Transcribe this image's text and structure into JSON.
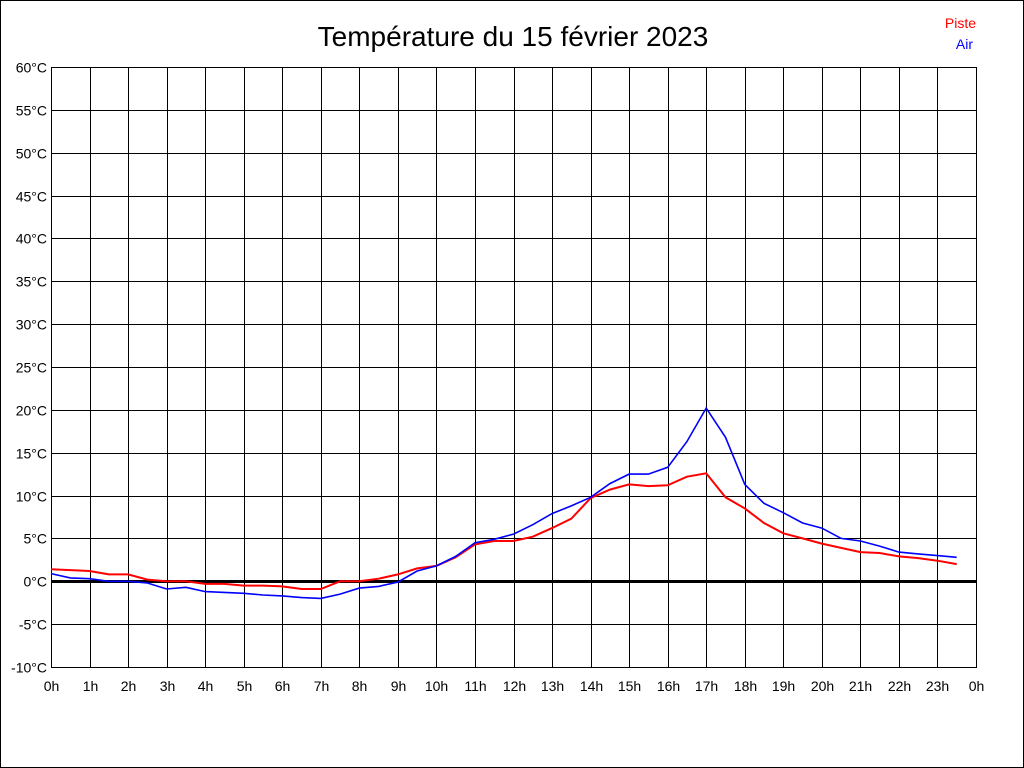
{
  "chart_data": {
    "type": "line",
    "title": "Température du 15 février 2023",
    "xlabel": "",
    "ylabel": "",
    "x_tick_labels": [
      "0h",
      "1h",
      "2h",
      "3h",
      "4h",
      "5h",
      "6h",
      "7h",
      "8h",
      "9h",
      "10h",
      "11h",
      "12h",
      "13h",
      "14h",
      "15h",
      "16h",
      "17h",
      "18h",
      "19h",
      "20h",
      "21h",
      "22h",
      "23h",
      "0h"
    ],
    "y_tick_labels": [
      "60°C",
      "55°C",
      "50°C",
      "45°C",
      "40°C",
      "35°C",
      "30°C",
      "25°C",
      "20°C",
      "15°C",
      "10°C",
      "5°C",
      "0°C",
      "-5°C",
      "-10°C"
    ],
    "xlim": [
      0,
      24
    ],
    "ylim": [
      -10,
      60
    ],
    "grid": true,
    "legend_placement": "top-right",
    "x": [
      0,
      0.5,
      1,
      1.5,
      2,
      2.5,
      3,
      3.5,
      4,
      4.5,
      5,
      5.5,
      6,
      6.5,
      7,
      7.5,
      8,
      8.5,
      9,
      9.5,
      10,
      10.5,
      11,
      11.5,
      12,
      12.5,
      13,
      13.5,
      14,
      14.5,
      15,
      15.5,
      16,
      16.5,
      17,
      17.5,
      18,
      18.5,
      19,
      19.5,
      20,
      20.5,
      21,
      21.5,
      22,
      22.5,
      23,
      23.5
    ],
    "series": [
      {
        "name": "Piste",
        "color": "#ff0000",
        "values": [
          1.4,
          1.3,
          1.2,
          0.8,
          0.8,
          0.2,
          0,
          0,
          -0.3,
          -0.3,
          -0.5,
          -0.5,
          -0.6,
          -0.9,
          -0.9,
          0,
          0,
          0.3,
          0.8,
          1.5,
          1.8,
          2.8,
          4.3,
          4.7,
          4.7,
          5.2,
          6.2,
          7.3,
          9.7,
          10.7,
          11.3,
          11.1,
          11.2,
          12.2,
          12.6,
          9.8,
          8.5,
          6.8,
          5.6,
          5.0,
          4.4,
          3.9,
          3.4,
          3.3,
          2.9,
          2.7,
          2.4,
          2.0
        ]
      },
      {
        "name": "Air",
        "color": "#0000ff",
        "values": [
          0.9,
          0.4,
          0.3,
          0,
          0,
          -0.2,
          -0.9,
          -0.7,
          -1.2,
          -1.3,
          -1.4,
          -1.6,
          -1.7,
          -1.9,
          -2.0,
          -1.5,
          -0.8,
          -0.6,
          -0.1,
          1.2,
          1.8,
          2.9,
          4.5,
          4.9,
          5.5,
          6.6,
          7.9,
          8.8,
          9.8,
          11.4,
          12.5,
          12.5,
          13.3,
          16.3,
          20.2,
          16.8,
          11.3,
          9.1,
          8.0,
          6.8,
          6.2,
          5.0,
          4.7,
          4.1,
          3.4,
          3.2,
          3.0,
          2.8
        ]
      }
    ]
  }
}
